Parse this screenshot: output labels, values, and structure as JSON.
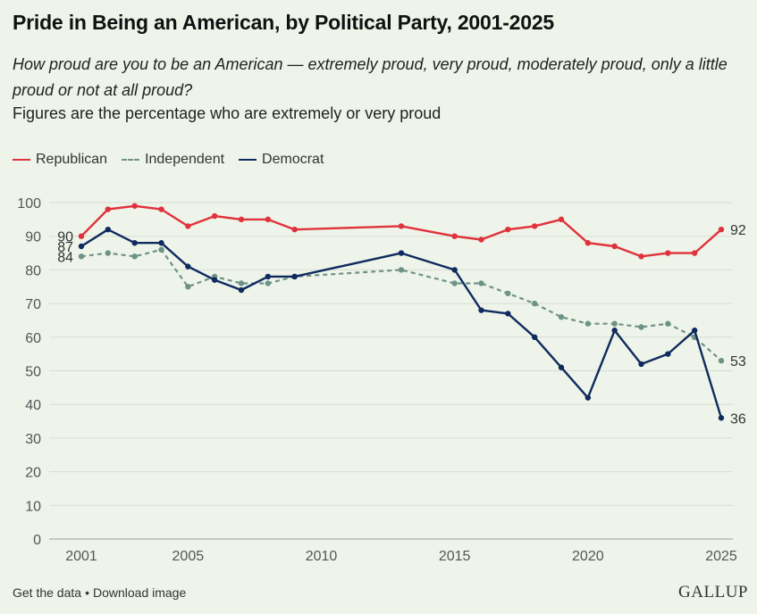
{
  "header": {
    "title": "Pride in Being an American, by Political Party, 2001-2025",
    "question": "How proud are you to be an American — extremely proud, very proud, moderately proud, only a little proud or not at all proud?",
    "note": "Figures are the percentage who are extremely or very proud"
  },
  "legend": {
    "republican": "Republican",
    "independent": "Independent",
    "democrat": "Democrat"
  },
  "footer": {
    "get_data": "Get the data",
    "separator": "•",
    "download": "Download image",
    "brand": "GALLUP"
  },
  "colors": {
    "republican": "#e0323a",
    "independent": "#6f9286",
    "democrat": "#0f2a5e",
    "grid": "#d5ddd2",
    "axis_text": "#555555"
  },
  "chart_data": {
    "type": "line",
    "title": "Pride in Being an American, by Political Party, 2001-2025",
    "xlabel": "",
    "ylabel": "",
    "ylim": [
      0,
      100
    ],
    "xlim": [
      2001,
      2025
    ],
    "y_ticks": [
      0,
      10,
      20,
      30,
      40,
      50,
      60,
      70,
      80,
      90,
      100
    ],
    "x_ticks": [
      2001,
      2005,
      2010,
      2015,
      2020,
      2025
    ],
    "grid": true,
    "legend_position": "top-left",
    "series": [
      {
        "name": "Republican",
        "key": "republican",
        "style": "solid",
        "points": [
          [
            2001,
            90
          ],
          [
            2002,
            98
          ],
          [
            2003,
            99
          ],
          [
            2004,
            98
          ],
          [
            2005,
            93
          ],
          [
            2006,
            96
          ],
          [
            2007,
            95
          ],
          [
            2008,
            95
          ],
          [
            2009,
            92
          ],
          [
            2013,
            93
          ],
          [
            2015,
            90
          ],
          [
            2016,
            89
          ],
          [
            2017,
            92
          ],
          [
            2018,
            93
          ],
          [
            2019,
            95
          ],
          [
            2020,
            88
          ],
          [
            2021,
            87
          ],
          [
            2022,
            84
          ],
          [
            2023,
            85
          ],
          [
            2024,
            85
          ],
          [
            2025,
            92
          ]
        ],
        "start_label": "90",
        "end_label": "92"
      },
      {
        "name": "Independent",
        "key": "independent",
        "style": "dashed",
        "points": [
          [
            2001,
            84
          ],
          [
            2002,
            85
          ],
          [
            2003,
            84
          ],
          [
            2004,
            86
          ],
          [
            2005,
            75
          ],
          [
            2006,
            78
          ],
          [
            2007,
            76
          ],
          [
            2008,
            76
          ],
          [
            2009,
            78
          ],
          [
            2013,
            80
          ],
          [
            2015,
            76
          ],
          [
            2016,
            76
          ],
          [
            2017,
            73
          ],
          [
            2018,
            70
          ],
          [
            2019,
            66
          ],
          [
            2020,
            64
          ],
          [
            2021,
            64
          ],
          [
            2022,
            63
          ],
          [
            2023,
            64
          ],
          [
            2024,
            60
          ],
          [
            2025,
            53
          ]
        ],
        "start_label": "84",
        "end_label": "53"
      },
      {
        "name": "Democrat",
        "key": "democrat",
        "style": "solid",
        "points": [
          [
            2001,
            87
          ],
          [
            2002,
            92
          ],
          [
            2003,
            88
          ],
          [
            2004,
            88
          ],
          [
            2005,
            81
          ],
          [
            2006,
            77
          ],
          [
            2007,
            74
          ],
          [
            2008,
            78
          ],
          [
            2009,
            78
          ],
          [
            2013,
            85
          ],
          [
            2015,
            80
          ],
          [
            2016,
            68
          ],
          [
            2017,
            67
          ],
          [
            2018,
            60
          ],
          [
            2019,
            51
          ],
          [
            2020,
            42
          ],
          [
            2021,
            62
          ],
          [
            2022,
            52
          ],
          [
            2023,
            55
          ],
          [
            2024,
            62
          ],
          [
            2025,
            36
          ]
        ],
        "start_label": "87",
        "end_label": "36"
      }
    ]
  }
}
